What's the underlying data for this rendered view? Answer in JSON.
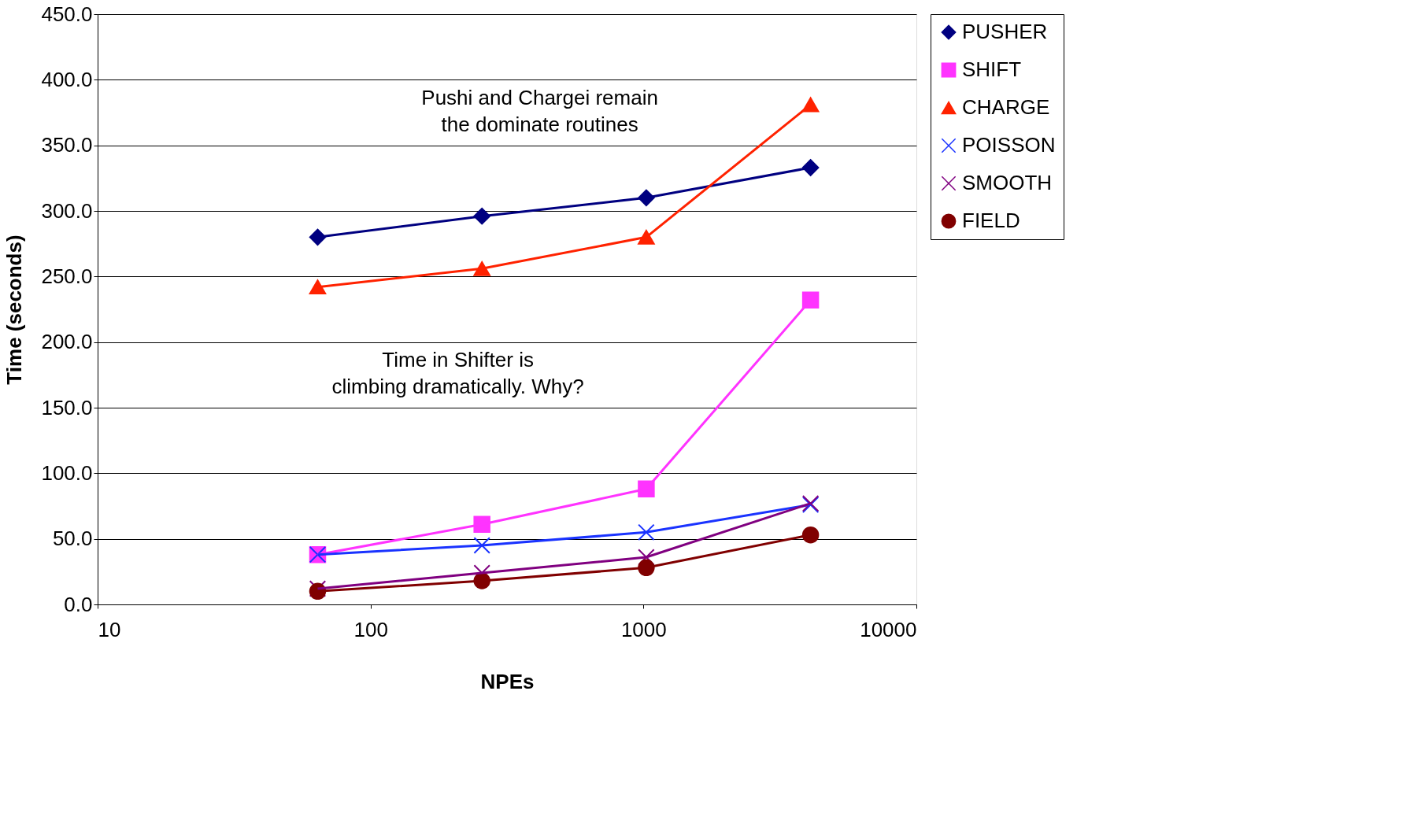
{
  "chart_data": {
    "type": "line",
    "xlabel": "NPEs",
    "ylabel": "Time  (seconds)",
    "x": [
      64,
      256,
      1024,
      4096
    ],
    "log": "x",
    "xlim": [
      10,
      10000
    ],
    "xticks": [
      10,
      100,
      1000,
      10000
    ],
    "ylim": [
      0,
      450
    ],
    "yticks": [
      {
        "value": 0,
        "label": "0.0"
      },
      {
        "value": 50,
        "label": "50.0"
      },
      {
        "value": 100,
        "label": "100.0"
      },
      {
        "value": 150,
        "label": "150.0"
      },
      {
        "value": 200,
        "label": "200.0"
      },
      {
        "value": 250,
        "label": "250.0"
      },
      {
        "value": 300,
        "label": "300.0"
      },
      {
        "value": 350,
        "label": "350.0"
      },
      {
        "value": 400,
        "label": "400.0"
      },
      {
        "value": 450,
        "label": "450.0"
      }
    ],
    "grid": "y",
    "legend": "right",
    "series": [
      {
        "name": "PUSHER",
        "color": "#000080",
        "marker": "diamond",
        "values": [
          280,
          296,
          310,
          333
        ]
      },
      {
        "name": "SHIFT",
        "color": "#ff33ff",
        "marker": "square",
        "values": [
          38,
          61,
          88,
          232
        ]
      },
      {
        "name": "CHARGE",
        "color": "#ff2200",
        "marker": "triangle",
        "values": [
          242,
          256,
          280,
          381
        ]
      },
      {
        "name": "POISSON",
        "color": "#1a33ff",
        "marker": "cross",
        "values": [
          38,
          45,
          55,
          76
        ]
      },
      {
        "name": "SMOOTH",
        "color": "#800080",
        "marker": "cross",
        "values": [
          12,
          24,
          36,
          77
        ]
      },
      {
        "name": "FIELD",
        "color": "#800000",
        "marker": "circle",
        "values": [
          10,
          18,
          28,
          53
        ]
      }
    ],
    "annotations": [
      "Pushi and Chargei remain\nthe dominate routines",
      "Time in Shifter is\nclimbing dramatically.  Why?"
    ]
  }
}
